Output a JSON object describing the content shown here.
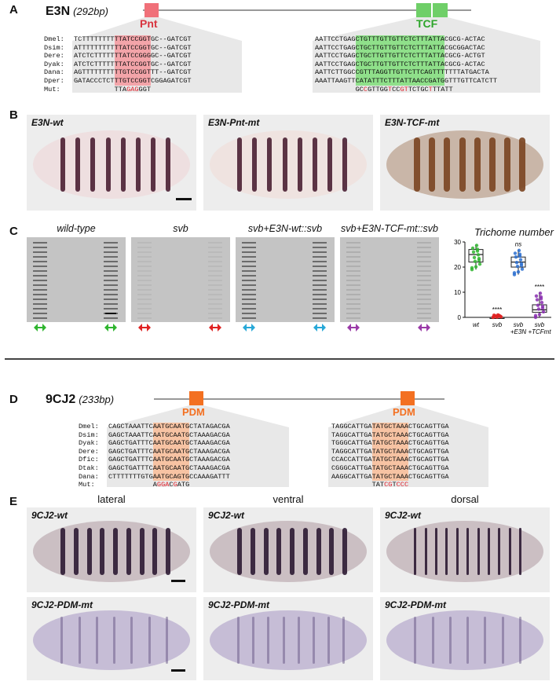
{
  "panelA": {
    "letter": "A",
    "gene": "E3N",
    "length": "(292bp)",
    "site1": "Pnt",
    "site2": "TCF",
    "pnt_rows": [
      {
        "sp": "Dmel:",
        "pre": "TCTTTTTTTT",
        "hl": "TTATCCGGT",
        "post": "GC--GATCGT"
      },
      {
        "sp": "Dsim:",
        "pre": "ATTTTTTTTT",
        "hl": "TTATCCGGT",
        "post": "GC--GATCGT"
      },
      {
        "sp": "Dere:",
        "pre": "ATCTCTTTTT",
        "hl": "TTATCCGGG",
        "post": "GC--GATCGT"
      },
      {
        "sp": "Dyak:",
        "pre": "ATCTCTTTTT",
        "hl": "TTATCCGGT",
        "post": "GC--GATCGT"
      },
      {
        "sp": "Dana:",
        "pre": "AGTTTTTTTT",
        "hl": "TTGTCCGGT",
        "post": "TT--GATCGT"
      },
      {
        "sp": "Dper:",
        "pre": "GATACCCTCT",
        "hl": "TTGTCCGGT",
        "post": "CGGAGATCGT"
      }
    ],
    "pnt_mut_label": "Mut:",
    "pnt_mut_a": "TTA",
    "pnt_mut_b": "GAG",
    "pnt_mut_c": "GGT",
    "tcf_rows": [
      {
        "pre": "AATTCCTGAG",
        "hl": "CTGTTTGTTGTTCTCTTTATTA",
        "post": "CGCG-ACTAC"
      },
      {
        "pre": "AATTCCTGAG",
        "hl": "CTGCTTGTTGTTCTCTTTATTA",
        "post": "CGCGGACTAC"
      },
      {
        "pre": "AATTCCTGAG",
        "hl": "CTGCTTGTTGTTCTCTTTATTA",
        "post": "CGCG-ACTGT"
      },
      {
        "pre": "AATTCCTGAG",
        "hl": "CTGCTTGTTGTTCTCTTTATTA",
        "post": "CGCG-ACTAC"
      },
      {
        "pre": "AATTCTTGGC",
        "hl": "CGTTTAGGTTGTTCTTCAGTTT",
        "post": "TTTTATGACTA"
      },
      {
        "pre": "AAATTAAGTT",
        "hl": "CATATTTCTTTATTAACCGATG",
        "post": "GTTTGTTCATCTT"
      }
    ],
    "tcf_mut": "GCCGTTGGTCCGTTCTGCTTTATT"
  },
  "panelB": {
    "letter": "B",
    "labels": [
      "E3N-wt",
      "E3N-Pnt-mt",
      "E3N-TCF-mt"
    ]
  },
  "panelC": {
    "letter": "C",
    "columns": [
      "wild-type",
      "svb",
      "svb+E3N-wt::svb",
      "svb+E3N-TCF-mt::svb"
    ],
    "arrow_colors": [
      "#2fb52f",
      "#e02323",
      "#27a8d8",
      "#9b3aa8"
    ],
    "chart_data": {
      "type": "box",
      "title": "Trichome number",
      "categories": [
        "wt",
        "svb",
        "svb\n+E3N",
        "svb\n+TCFmt"
      ],
      "cat_line1": [
        "wt",
        "svb",
        "svb",
        "svb"
      ],
      "cat_line2": [
        "",
        "",
        "+E3N",
        "+TCFmt"
      ],
      "medians": [
        25,
        0,
        22,
        3
      ],
      "q1": [
        22,
        0,
        20,
        2
      ],
      "q3": [
        27,
        0,
        24,
        5
      ],
      "min": [
        19,
        0,
        17,
        0
      ],
      "max": [
        29,
        1,
        27,
        10
      ],
      "colors": [
        "#2fb52f",
        "#e02323",
        "#2a6fd0",
        "#8a2fb0"
      ],
      "significance": [
        "",
        "****",
        "ns",
        "****"
      ],
      "ylim": [
        0,
        30
      ],
      "yticks": [
        "0",
        "10",
        "20",
        "30"
      ]
    }
  },
  "panelD": {
    "letter": "D",
    "gene": "9CJ2",
    "length": "(233bp)",
    "site1": "PDM",
    "site2": "PDM",
    "left_rows": [
      {
        "sp": "Dmel:",
        "pre": "CAGCTAAATTC",
        "hl": "AATGCAATG",
        "post": "CTATAGACGA"
      },
      {
        "sp": "Dsim:",
        "pre": "GAGCTAAATTC",
        "hl": "AATGCAATG",
        "post": "CTAAAGACGA"
      },
      {
        "sp": "Dyak:",
        "pre": "GAGCTGATTTC",
        "hl": "AATGCAATG",
        "post": "CTAAAGACGA"
      },
      {
        "sp": "Dere:",
        "pre": "GAGCTGATTTC",
        "hl": "AATGCAATG",
        "post": "CTAAAGACGA"
      },
      {
        "sp": "Dfic:",
        "pre": "GAGCTGATTTC",
        "hl": "AATGCAATG",
        "post": "CTAAAGACGA"
      },
      {
        "sp": "Dtak:",
        "pre": "GAGCTGATTTC",
        "hl": "AATGCAATG",
        "post": "CTAAAGACGA"
      },
      {
        "sp": "Dana:",
        "pre": "CTTTTTTTGTG",
        "hl": "AATGCAGTG",
        "post": "CCAAAGATTT"
      }
    ],
    "mut_label": "Mut:",
    "left_mut": "AggaCgATG",
    "right_rows": [
      {
        "pre": "TAGGCATTGA",
        "hl": "TATGCTAAA",
        "post": "CTGCAGTTGA"
      },
      {
        "pre": "TAGGCATTGA",
        "hl": "TATGCTAAA",
        "post": "CTGCAGTTGA"
      },
      {
        "pre": "TGGGCATTGA",
        "hl": "TATGCTAAA",
        "post": "CTGCAGTTGA"
      },
      {
        "pre": "TAGGCATTGA",
        "hl": "TATGCTAAA",
        "post": "CTGCAGTTGA"
      },
      {
        "pre": "CCACCATTGA",
        "hl": "TATGCTAAA",
        "post": "CTGCAGTTGA"
      },
      {
        "pre": "CGGGCATTGA",
        "hl": "TATGCTAAA",
        "post": "CTGCAGTTGA"
      },
      {
        "pre": "AAGGCATTGA",
        "hl": "TATGCTAAA",
        "post": "CTGCAGTTGA"
      }
    ],
    "right_mut": "TATcgTccc"
  },
  "panelE": {
    "letter": "E",
    "views": [
      "lateral",
      "ventral",
      "dorsal"
    ],
    "wt_label": "9CJ2-wt",
    "mt_label": "9CJ2-PDM-mt"
  }
}
